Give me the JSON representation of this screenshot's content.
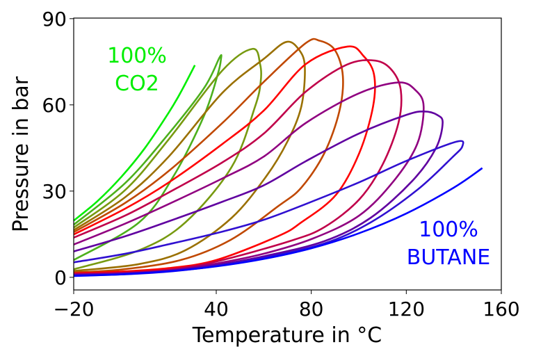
{
  "chart_data": {
    "type": "line",
    "xlabel": "Temperature in °C",
    "ylabel": "Pressure in bar",
    "xlim": [
      -20,
      160
    ],
    "ylim": [
      -4.4,
      90.2
    ],
    "xticks": [
      -20,
      40,
      80,
      120,
      160
    ],
    "xtick_labels": [
      "−20",
      "40",
      "80",
      "120",
      "160"
    ],
    "yticks": [
      0,
      30,
      60,
      90
    ],
    "ytick_labels": [
      "0",
      "30",
      "60",
      "90"
    ],
    "grid": false,
    "legend": "none",
    "annotations": [
      {
        "lines": [
          "100%",
          "CO2"
        ],
        "color": "#00ee00"
      },
      {
        "lines": [
          "100%",
          "BUTANE"
        ],
        "color": "#0000ff"
      }
    ],
    "series": [
      {
        "color": "#00ee00",
        "points": [
          [
            -20,
            19.7
          ],
          [
            -10,
            26.5
          ],
          [
            0,
            34.9
          ],
          [
            10,
            45
          ],
          [
            20,
            57.3
          ],
          [
            25,
            64.3
          ],
          [
            31,
            73.8
          ]
        ]
      },
      {
        "color": "#4cb01c",
        "points": [
          [
            -20,
            18.3
          ],
          [
            1.7,
            32.8
          ],
          [
            20,
            50
          ],
          [
            35,
            66
          ],
          [
            41.4,
            76.5
          ],
          [
            42,
            76
          ],
          [
            40.6,
            70.5
          ],
          [
            34.8,
            56.1
          ],
          [
            22.1,
            35.3
          ],
          [
            7.5,
            19.1
          ],
          [
            -20,
            6.0
          ]
        ]
      },
      {
        "color": "#779a10",
        "points": [
          [
            -20,
            17.3
          ],
          [
            1.7,
            30.4
          ],
          [
            20,
            48
          ],
          [
            42.6,
            72
          ],
          [
            55.3,
            79.5
          ],
          [
            58.5,
            74
          ],
          [
            58.7,
            68
          ],
          [
            56.3,
            59.3
          ],
          [
            46.5,
            38.4
          ],
          [
            27,
            19.1
          ],
          [
            7.5,
            9.4
          ],
          [
            -20,
            2.8
          ]
        ]
      },
      {
        "color": "#9a7000",
        "points": [
          [
            -20,
            16.4
          ],
          [
            1.7,
            27.9
          ],
          [
            20,
            42
          ],
          [
            42.6,
            64.2
          ],
          [
            60,
            76
          ],
          [
            69.5,
            81.9
          ],
          [
            75,
            79
          ],
          [
            77.3,
            73
          ],
          [
            75.8,
            59.4
          ],
          [
            70,
            47.3
          ],
          [
            61.1,
            35.2
          ],
          [
            46.5,
            20.7
          ],
          [
            27,
            9.4
          ],
          [
            7.5,
            4.6
          ],
          [
            -20,
            2.2
          ]
        ]
      },
      {
        "color": "#c04800",
        "points": [
          [
            -20,
            15.7
          ],
          [
            1.7,
            25.9
          ],
          [
            20,
            37
          ],
          [
            42.6,
            53.7
          ],
          [
            60,
            68
          ],
          [
            77.7,
            81.5
          ],
          [
            83.6,
            82.3
          ],
          [
            90,
            79
          ],
          [
            93.3,
            70
          ],
          [
            91.8,
            57.7
          ],
          [
            85.5,
            43.2
          ],
          [
            75.8,
            31.2
          ],
          [
            66,
            24.7
          ],
          [
            46,
            13
          ],
          [
            25,
            6
          ],
          [
            0,
            2.7
          ],
          [
            -20,
            1.7
          ]
        ]
      },
      {
        "color": "#ff0000",
        "points": [
          [
            -20,
            14.9
          ],
          [
            1.7,
            23.9
          ],
          [
            20,
            33
          ],
          [
            42.6,
            46.4
          ],
          [
            60,
            58
          ],
          [
            77.7,
            74.2
          ],
          [
            95.3,
            80.3
          ],
          [
            102,
            77
          ],
          [
            106.4,
            70.6
          ],
          [
            106,
            59.4
          ],
          [
            100.2,
            43.2
          ],
          [
            90.4,
            28.7
          ],
          [
            75.8,
            19.1
          ],
          [
            66,
            14.3
          ],
          [
            40,
            6
          ],
          [
            20,
            3.2
          ],
          [
            0,
            2
          ],
          [
            -20,
            1.4
          ]
        ]
      },
      {
        "color": "#c0004a",
        "points": [
          [
            -20,
            13.8
          ],
          [
            1.7,
            21.5
          ],
          [
            20,
            29.5
          ],
          [
            42.6,
            40
          ],
          [
            60,
            50
          ],
          [
            77.7,
            64.6
          ],
          [
            95,
            74
          ],
          [
            107,
            75.4
          ],
          [
            114,
            72
          ],
          [
            117.7,
            65
          ],
          [
            116.7,
            53.7
          ],
          [
            110,
            39.2
          ],
          [
            100.2,
            27.1
          ],
          [
            85.6,
            17.5
          ],
          [
            71,
            12.6
          ],
          [
            40,
            5.5
          ],
          [
            20,
            2.7
          ],
          [
            0,
            1.6
          ],
          [
            -20,
            1.2
          ]
        ]
      },
      {
        "color": "#900080",
        "points": [
          [
            -20,
            11.4
          ],
          [
            1.7,
            18.7
          ],
          [
            20,
            25.5
          ],
          [
            42.6,
            34.4
          ],
          [
            60,
            42
          ],
          [
            77.7,
            53.7
          ],
          [
            100,
            64
          ],
          [
            116.8,
            67.8
          ],
          [
            124,
            65
          ],
          [
            127.3,
            59.4
          ],
          [
            124.6,
            46.4
          ],
          [
            114.8,
            33.6
          ],
          [
            100.2,
            21.5
          ],
          [
            80.7,
            13.5
          ],
          [
            60,
            8.2
          ],
          [
            40,
            4.8
          ],
          [
            20,
            2.4
          ],
          [
            0,
            1.4
          ],
          [
            -20,
            1.0
          ]
        ]
      },
      {
        "color": "#6000a0",
        "points": [
          [
            -20,
            9.0
          ],
          [
            1.7,
            14.3
          ],
          [
            20,
            19.5
          ],
          [
            42.6,
            26.3
          ],
          [
            60,
            32
          ],
          [
            77.7,
            40.4
          ],
          [
            100,
            50
          ],
          [
            120,
            56.5
          ],
          [
            127.5,
            57.7
          ],
          [
            133,
            56.5
          ],
          [
            135.3,
            53.7
          ],
          [
            132.4,
            44.8
          ],
          [
            122.6,
            33.6
          ],
          [
            105,
            20.7
          ],
          [
            85.6,
            12.6
          ],
          [
            60,
            7.3
          ],
          [
            40,
            4.3
          ],
          [
            20,
            2.2
          ],
          [
            0,
            1.2
          ],
          [
            -20,
            0.8
          ]
        ]
      },
      {
        "color": "#3010d0",
        "points": [
          [
            -20,
            5.2
          ],
          [
            1.7,
            8.2
          ],
          [
            20,
            11.5
          ],
          [
            42.6,
            15.9
          ],
          [
            60,
            20
          ],
          [
            77.7,
            25.5
          ],
          [
            100,
            33
          ],
          [
            120,
            40.5
          ],
          [
            141.1,
            47.2
          ],
          [
            143.6,
            45.6
          ],
          [
            139.2,
            41.6
          ],
          [
            124.6,
            30.4
          ],
          [
            105,
            19.1
          ],
          [
            85.6,
            11.8
          ],
          [
            60,
            6.8
          ],
          [
            40,
            3.9
          ],
          [
            20,
            2.0
          ],
          [
            0,
            1.0
          ],
          [
            -20,
            0.6
          ]
        ]
      },
      {
        "color": "#0000ff",
        "points": [
          [
            -20,
            0.45
          ],
          [
            0,
            1.03
          ],
          [
            20,
            2.08
          ],
          [
            40,
            3.8
          ],
          [
            60,
            6.4
          ],
          [
            80,
            10.1
          ],
          [
            100,
            15.3
          ],
          [
            120,
            22.2
          ],
          [
            140,
            31.2
          ],
          [
            152,
            38
          ]
        ]
      }
    ]
  }
}
